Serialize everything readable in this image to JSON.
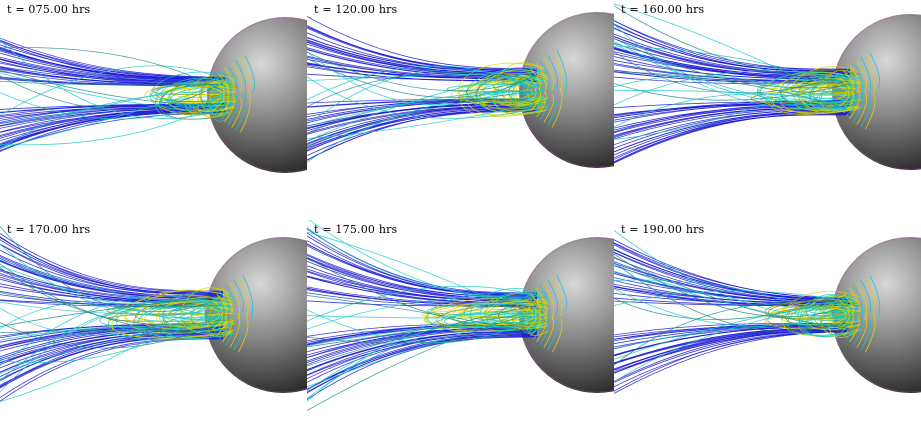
{
  "panels": [
    {
      "label": "t = 075.00 hrs"
    },
    {
      "label": "t = 120.00 hrs"
    },
    {
      "label": "t = 160.00 hrs"
    },
    {
      "label": "t = 170.00 hrs"
    },
    {
      "label": "t = 175.00 hrs"
    },
    {
      "label": "t = 190.00 hrs"
    }
  ],
  "colors": {
    "open_field_lines": "#1a1ad4",
    "closed_field_lines_1": "#d8d800",
    "closed_field_lines_2": "#16c8c8",
    "closed_field_lines_3": "#8a8a10",
    "planet_shade": "#5a5a5a"
  }
}
